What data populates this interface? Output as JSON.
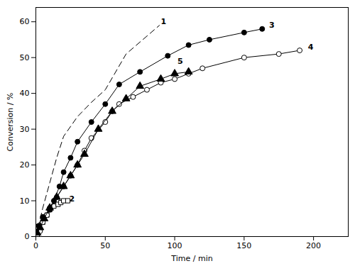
{
  "chart_data": {
    "type": "line",
    "x_label": "Time / min",
    "y_label": "Conversion / %",
    "xlim": [
      0,
      225
    ],
    "ylim": [
      0,
      64
    ],
    "xticks": [
      0,
      50,
      100,
      150,
      200
    ],
    "yticks": [
      0,
      10,
      20,
      30,
      40,
      50,
      60
    ],
    "grid": false,
    "series": [
      {
        "name": "1",
        "color": "#000000",
        "marker": "none",
        "line_style": "dashed",
        "x": [
          0,
          5,
          10,
          15,
          20,
          30,
          40,
          50,
          65,
          89
        ],
        "values": [
          0,
          8,
          15,
          22,
          28,
          33.5,
          37.5,
          41,
          51,
          59
        ]
      },
      {
        "name": "2",
        "color": "#000000",
        "marker": "open_square",
        "line_style": "solid",
        "x": [
          1,
          3,
          5,
          8,
          10,
          13,
          16,
          18,
          20,
          23
        ],
        "values": [
          0.5,
          2,
          4,
          6,
          7.5,
          8.5,
          9,
          9.5,
          10,
          10
        ]
      },
      {
        "name": "3",
        "color": "#000000",
        "marker": "filled_circle",
        "line_style": "solid",
        "x": [
          1,
          2,
          5,
          10,
          13,
          17,
          20,
          25,
          30,
          40,
          50,
          60,
          75,
          95,
          110,
          125,
          150,
          163
        ],
        "values": [
          1,
          3,
          5.5,
          7.5,
          10,
          14,
          18,
          22,
          26.5,
          32,
          37,
          42.5,
          46,
          50.5,
          53.5,
          55,
          57,
          58
        ]
      },
      {
        "name": "4",
        "color": "#000000",
        "marker": "open_circle",
        "line_style": "solid",
        "x": [
          1,
          3,
          5,
          8,
          10,
          15,
          20,
          25,
          30,
          35,
          40,
          50,
          55,
          60,
          70,
          80,
          90,
          100,
          110,
          120,
          150,
          175,
          190
        ],
        "values": [
          0.5,
          1.5,
          4,
          6,
          8,
          11,
          14,
          17,
          20,
          24,
          27.5,
          32,
          35,
          37,
          39,
          41,
          43,
          44,
          45.5,
          47,
          50,
          51,
          52
        ]
      },
      {
        "name": "5",
        "color": "#000000",
        "marker": "filled_triangle",
        "line_style": "solid",
        "x": [
          1,
          3,
          6,
          10,
          15,
          20,
          25,
          30,
          35,
          45,
          55,
          65,
          75,
          90,
          100,
          110
        ],
        "values": [
          1,
          2.5,
          5,
          8,
          11,
          14,
          17,
          20,
          23,
          30,
          35,
          38.5,
          42,
          44,
          45.5,
          46
        ]
      }
    ],
    "annotations": [
      {
        "text": "1",
        "x": 92,
        "y": 60
      },
      {
        "text": "2",
        "x": 26,
        "y": 10.5
      },
      {
        "text": "3",
        "x": 170,
        "y": 59
      },
      {
        "text": "4",
        "x": 198,
        "y": 53
      },
      {
        "text": "5",
        "x": 104,
        "y": 49
      }
    ]
  }
}
